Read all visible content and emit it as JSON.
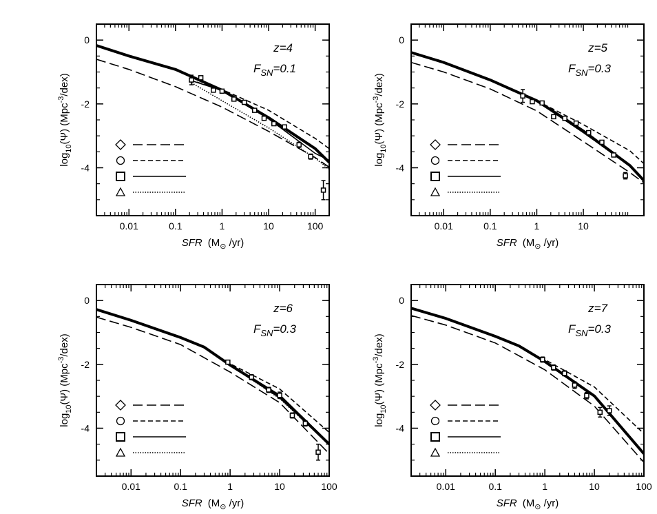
{
  "chart_data": [
    {
      "type": "line",
      "log_x": true,
      "legend": "left",
      "annotation": [
        "z=4"
      ],
      "annotation2": [
        "F",
        "SN",
        "=0.1"
      ],
      "xlabel": [
        "SFR",
        "(M",
        "⊙",
        " /yr)"
      ],
      "ylabel": [
        "log",
        "10",
        "(Ψ)  (Mpc",
        "-3",
        "/dex)"
      ],
      "xlim": [
        0.002,
        200
      ],
      "ylim": [
        -5.5,
        0.5
      ],
      "xticks": [
        0.01,
        0.1,
        1,
        10,
        100
      ],
      "yticks": [
        0,
        -2,
        -4
      ],
      "series": [
        {
          "marker": "none",
          "dash": "solid",
          "width": 4,
          "color": "#000000",
          "x": [
            0.002,
            0.01,
            0.1,
            1,
            10,
            100,
            200
          ],
          "values": [
            -0.17,
            -0.5,
            -0.92,
            -1.57,
            -2.43,
            -3.4,
            -3.83
          ]
        },
        {
          "marker": "diamond",
          "dash": "long",
          "width": 1.6,
          "color": "#000000",
          "x": [
            0.002,
            0.01,
            0.1,
            1,
            10,
            100,
            200
          ],
          "values": [
            -0.6,
            -0.92,
            -1.46,
            -2.1,
            -2.86,
            -3.68,
            -3.98
          ]
        },
        {
          "marker": "circle",
          "dash": "short",
          "width": 1.6,
          "color": "#000000",
          "x": [
            0.2,
            1,
            10,
            100,
            200
          ],
          "values": [
            -1.25,
            -1.55,
            -2.2,
            -3.08,
            -3.4
          ]
        },
        {
          "marker": "square",
          "dash": "solid",
          "width": 1.6,
          "color": "#000000",
          "x": [
            0.2,
            1,
            10,
            100,
            200
          ],
          "values": [
            -1.25,
            -1.58,
            -2.47,
            -3.55,
            -3.77
          ]
        },
        {
          "marker": "triangle",
          "dash": "dotted",
          "width": 1.6,
          "color": "#000000",
          "x": [
            0.2,
            1,
            10,
            100,
            200
          ],
          "values": [
            -1.3,
            -1.9,
            -2.75,
            -3.7,
            -4.04
          ]
        }
      ],
      "points": {
        "x": [
          0.22,
          0.35,
          0.65,
          1.0,
          1.8,
          3,
          5,
          8,
          13,
          22,
          45,
          80,
          150
        ],
        "values": [
          -1.25,
          -1.18,
          -1.57,
          -1.6,
          -1.85,
          -1.95,
          -2.2,
          -2.45,
          -2.62,
          -2.72,
          -3.28,
          -3.65,
          -4.7
        ],
        "errors": [
          0.15,
          0.05,
          0.05,
          0.05,
          0.05,
          0.05,
          0.05,
          0.05,
          0.05,
          0.05,
          0.08,
          0.08,
          0.3
        ]
      }
    },
    {
      "type": "line",
      "log_x": true,
      "legend": "left",
      "annotation": [
        "z=5"
      ],
      "annotation2": [
        "F",
        "SN",
        "=0.3"
      ],
      "xlabel": [
        "SFR",
        "(M",
        "⊙",
        " /yr)"
      ],
      "ylabel": [
        "log",
        "10",
        "(Ψ)  (Mpc",
        "-3",
        "/dex)"
      ],
      "xlim": [
        0.002,
        200
      ],
      "ylim": [
        -5.5,
        0.5
      ],
      "xticks": [
        0.01,
        0.1,
        1,
        10
      ],
      "yticks": [
        0,
        -2,
        -4
      ],
      "series": [
        {
          "marker": "none",
          "dash": "solid",
          "width": 4,
          "color": "#000000",
          "x": [
            0.002,
            0.01,
            0.1,
            1,
            10,
            100,
            200
          ],
          "values": [
            -0.39,
            -0.7,
            -1.25,
            -1.9,
            -2.85,
            -3.93,
            -4.4
          ]
        },
        {
          "marker": "diamond",
          "dash": "long",
          "width": 1.6,
          "color": "#000000",
          "x": [
            0.002,
            0.01,
            0.1,
            1,
            10,
            100,
            200
          ],
          "values": [
            -0.7,
            -1.0,
            -1.53,
            -2.22,
            -3.18,
            -4.15,
            -4.47
          ]
        },
        {
          "marker": "circle",
          "dash": "short",
          "width": 1.6,
          "color": "#000000",
          "x": [
            0.5,
            1,
            10,
            100,
            200
          ],
          "values": [
            -1.7,
            -1.9,
            -2.65,
            -3.47,
            -3.87
          ]
        },
        {
          "marker": "square",
          "dash": "solid",
          "width": 1.6,
          "color": "#000000",
          "x": [
            0.5,
            1,
            10,
            100,
            200
          ],
          "values": [
            -1.72,
            -1.92,
            -2.9,
            -3.93,
            -4.4
          ]
        },
        {
          "marker": "triangle",
          "dash": "dotted",
          "width": 1.6,
          "color": "#000000",
          "x": [
            0.5,
            1,
            10,
            100,
            200
          ],
          "values": [
            -1.72,
            -1.92,
            -2.9,
            -3.95,
            -4.42
          ]
        }
      ],
      "points": {
        "x": [
          0.5,
          0.8,
          1.3,
          2.3,
          4,
          7,
          13,
          25,
          45,
          80
        ],
        "values": [
          -1.75,
          -1.93,
          -1.97,
          -2.4,
          -2.45,
          -2.6,
          -2.9,
          -3.2,
          -3.6,
          -4.25
        ],
        "errors": [
          0.2,
          0.05,
          0.05,
          0.05,
          0.05,
          0.05,
          0.05,
          0.05,
          0.05,
          0.1
        ]
      }
    },
    {
      "type": "line",
      "log_x": true,
      "legend": "left",
      "annotation": [
        "z=6"
      ],
      "annotation2": [
        "F",
        "SN",
        "=0.3"
      ],
      "xlabel": [
        "SFR",
        "(M",
        "⊙",
        " /yr)"
      ],
      "ylabel": [
        "log",
        "10",
        "(Ψ)  (Mpc",
        "-3",
        "/dex)"
      ],
      "xlim": [
        0.002,
        100
      ],
      "ylim": [
        -5.5,
        0.5
      ],
      "xticks": [
        0.01,
        0.1,
        1,
        10,
        100
      ],
      "yticks": [
        0,
        -2,
        -4
      ],
      "series": [
        {
          "marker": "none",
          "dash": "solid",
          "width": 4,
          "color": "#000000",
          "x": [
            0.002,
            0.01,
            0.1,
            0.3,
            1,
            10,
            100
          ],
          "values": [
            -0.28,
            -0.62,
            -1.16,
            -1.46,
            -2.02,
            -2.99,
            -4.5
          ]
        },
        {
          "marker": "diamond",
          "dash": "long",
          "width": 1.6,
          "color": "#000000",
          "x": [
            0.002,
            0.01,
            0.1,
            1,
            10,
            100
          ],
          "values": [
            -0.52,
            -0.84,
            -1.38,
            -2.24,
            -3.2,
            -4.8
          ]
        },
        {
          "marker": "circle",
          "dash": "short",
          "width": 1.6,
          "color": "#000000",
          "x": [
            0.8,
            1,
            10,
            100
          ],
          "values": [
            -1.9,
            -1.98,
            -2.77,
            -4.13
          ]
        },
        {
          "marker": "square",
          "dash": "solid",
          "width": 1.6,
          "color": "#000000",
          "x": [
            0.8,
            1,
            10,
            100
          ],
          "values": [
            -1.95,
            -2.02,
            -3.05,
            -4.5
          ]
        },
        {
          "marker": "triangle",
          "dash": "dotted",
          "width": 1.6,
          "color": "#000000",
          "x": [
            0.8,
            1,
            10,
            100
          ],
          "values": [
            -1.95,
            -2.03,
            -3.07,
            -4.52
          ]
        }
      ],
      "points": {
        "x": [
          0.9,
          2.7,
          6,
          10,
          18,
          33,
          60
        ],
        "values": [
          -1.93,
          -2.4,
          -2.8,
          -2.97,
          -3.6,
          -3.85,
          -4.75
        ],
        "errors": [
          0.05,
          0.08,
          0.08,
          0.1,
          0.08,
          0.08,
          0.25
        ]
      }
    },
    {
      "type": "line",
      "log_x": true,
      "legend": "left",
      "annotation": [
        "z=7"
      ],
      "annotation2": [
        "F",
        "SN",
        "=0.3"
      ],
      "xlabel": [
        "SFR",
        "(M",
        "⊙",
        " /yr)"
      ],
      "ylabel": [
        "log",
        "10",
        "(Ψ)  (Mpc",
        "-3",
        "/dex)"
      ],
      "xlim": [
        0.002,
        100
      ],
      "ylim": [
        -5.5,
        0.5
      ],
      "xticks": [
        0.01,
        0.1,
        1,
        10,
        100
      ],
      "yticks": [
        0,
        -2,
        -4
      ],
      "series": [
        {
          "marker": "none",
          "dash": "solid",
          "width": 4,
          "color": "#000000",
          "x": [
            0.002,
            0.01,
            0.1,
            0.3,
            1,
            10,
            100
          ],
          "values": [
            -0.24,
            -0.56,
            -1.12,
            -1.42,
            -1.91,
            -2.99,
            -4.8
          ]
        },
        {
          "marker": "diamond",
          "dash": "long",
          "width": 1.6,
          "color": "#000000",
          "x": [
            0.002,
            0.01,
            0.1,
            1,
            10,
            100
          ],
          "values": [
            -0.47,
            -0.77,
            -1.33,
            -2.17,
            -3.31,
            -5.07
          ]
        },
        {
          "marker": "circle",
          "dash": "short",
          "width": 1.6,
          "color": "#000000",
          "x": [
            0.8,
            1,
            10,
            100
          ],
          "values": [
            -1.8,
            -1.85,
            -2.71,
            -4.17
          ]
        },
        {
          "marker": "square",
          "dash": "solid",
          "width": 1.6,
          "color": "#000000",
          "x": [
            0.8,
            1,
            10,
            100
          ],
          "values": [
            -1.85,
            -1.91,
            -2.99,
            -4.8
          ]
        },
        {
          "marker": "triangle",
          "dash": "dotted",
          "width": 1.6,
          "color": "#000000",
          "x": [
            0.8,
            1,
            10,
            100
          ],
          "values": [
            -1.86,
            -1.92,
            -3.0,
            -4.82
          ]
        }
      ],
      "points": {
        "x": [
          0.9,
          1.5,
          2.5,
          4,
          7,
          13,
          20
        ],
        "values": [
          -1.85,
          -2.1,
          -2.28,
          -2.65,
          -2.98,
          -3.5,
          -3.45
        ],
        "errors": [
          0.08,
          0.08,
          0.08,
          0.1,
          0.1,
          0.15,
          0.15
        ]
      }
    }
  ]
}
